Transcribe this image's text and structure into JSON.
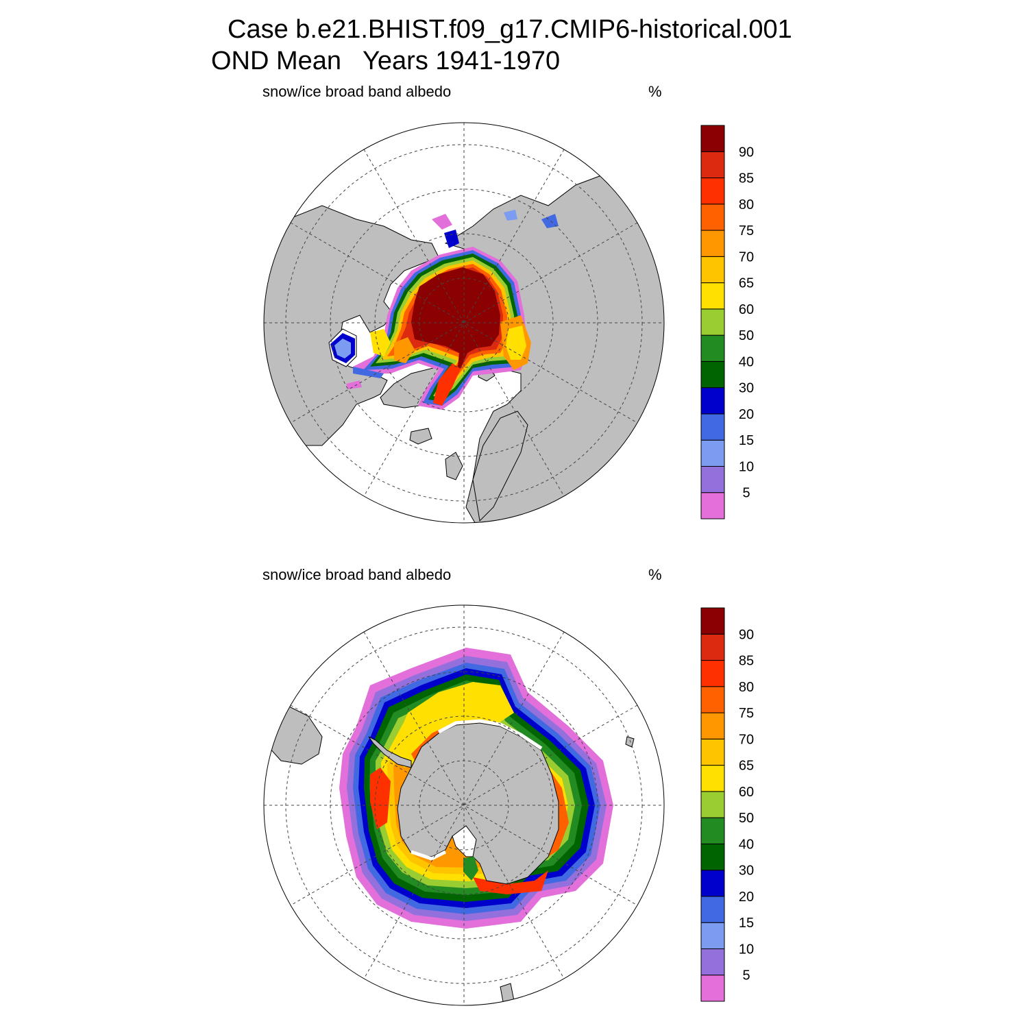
{
  "title": {
    "line1": "Case b.e21.BHIST.f09_g17.CMIP6-historical.001",
    "line2": "OND Mean   Years 1941-1970"
  },
  "colors": {
    "land": "#bebebe",
    "ocean": "#ffffff",
    "grid": "#444444",
    "outline": "#000000"
  },
  "colorbar": {
    "tick_labels": [
      "5",
      "10",
      "15",
      "20",
      "30",
      "40",
      "50",
      "60",
      "65",
      "70",
      "75",
      "80",
      "85",
      "90"
    ],
    "colors_bottom_to_top": [
      "#e36fdb",
      "#9370db",
      "#7b9cf0",
      "#4169e1",
      "#0000cd",
      "#006400",
      "#228b22",
      "#9acd32",
      "#ffe000",
      "#ffc400",
      "#ff9800",
      "#ff6000",
      "#ff3000",
      "#dc2a10",
      "#8b0000"
    ]
  },
  "panels": [
    {
      "id": "north",
      "hemisphere": "Northern Hemisphere",
      "variable_label": "snow/ice broad band albedo",
      "units": "%"
    },
    {
      "id": "south",
      "hemisphere": "Southern Hemisphere",
      "variable_label": "snow/ice broad band albedo",
      "units": "%"
    }
  ]
}
